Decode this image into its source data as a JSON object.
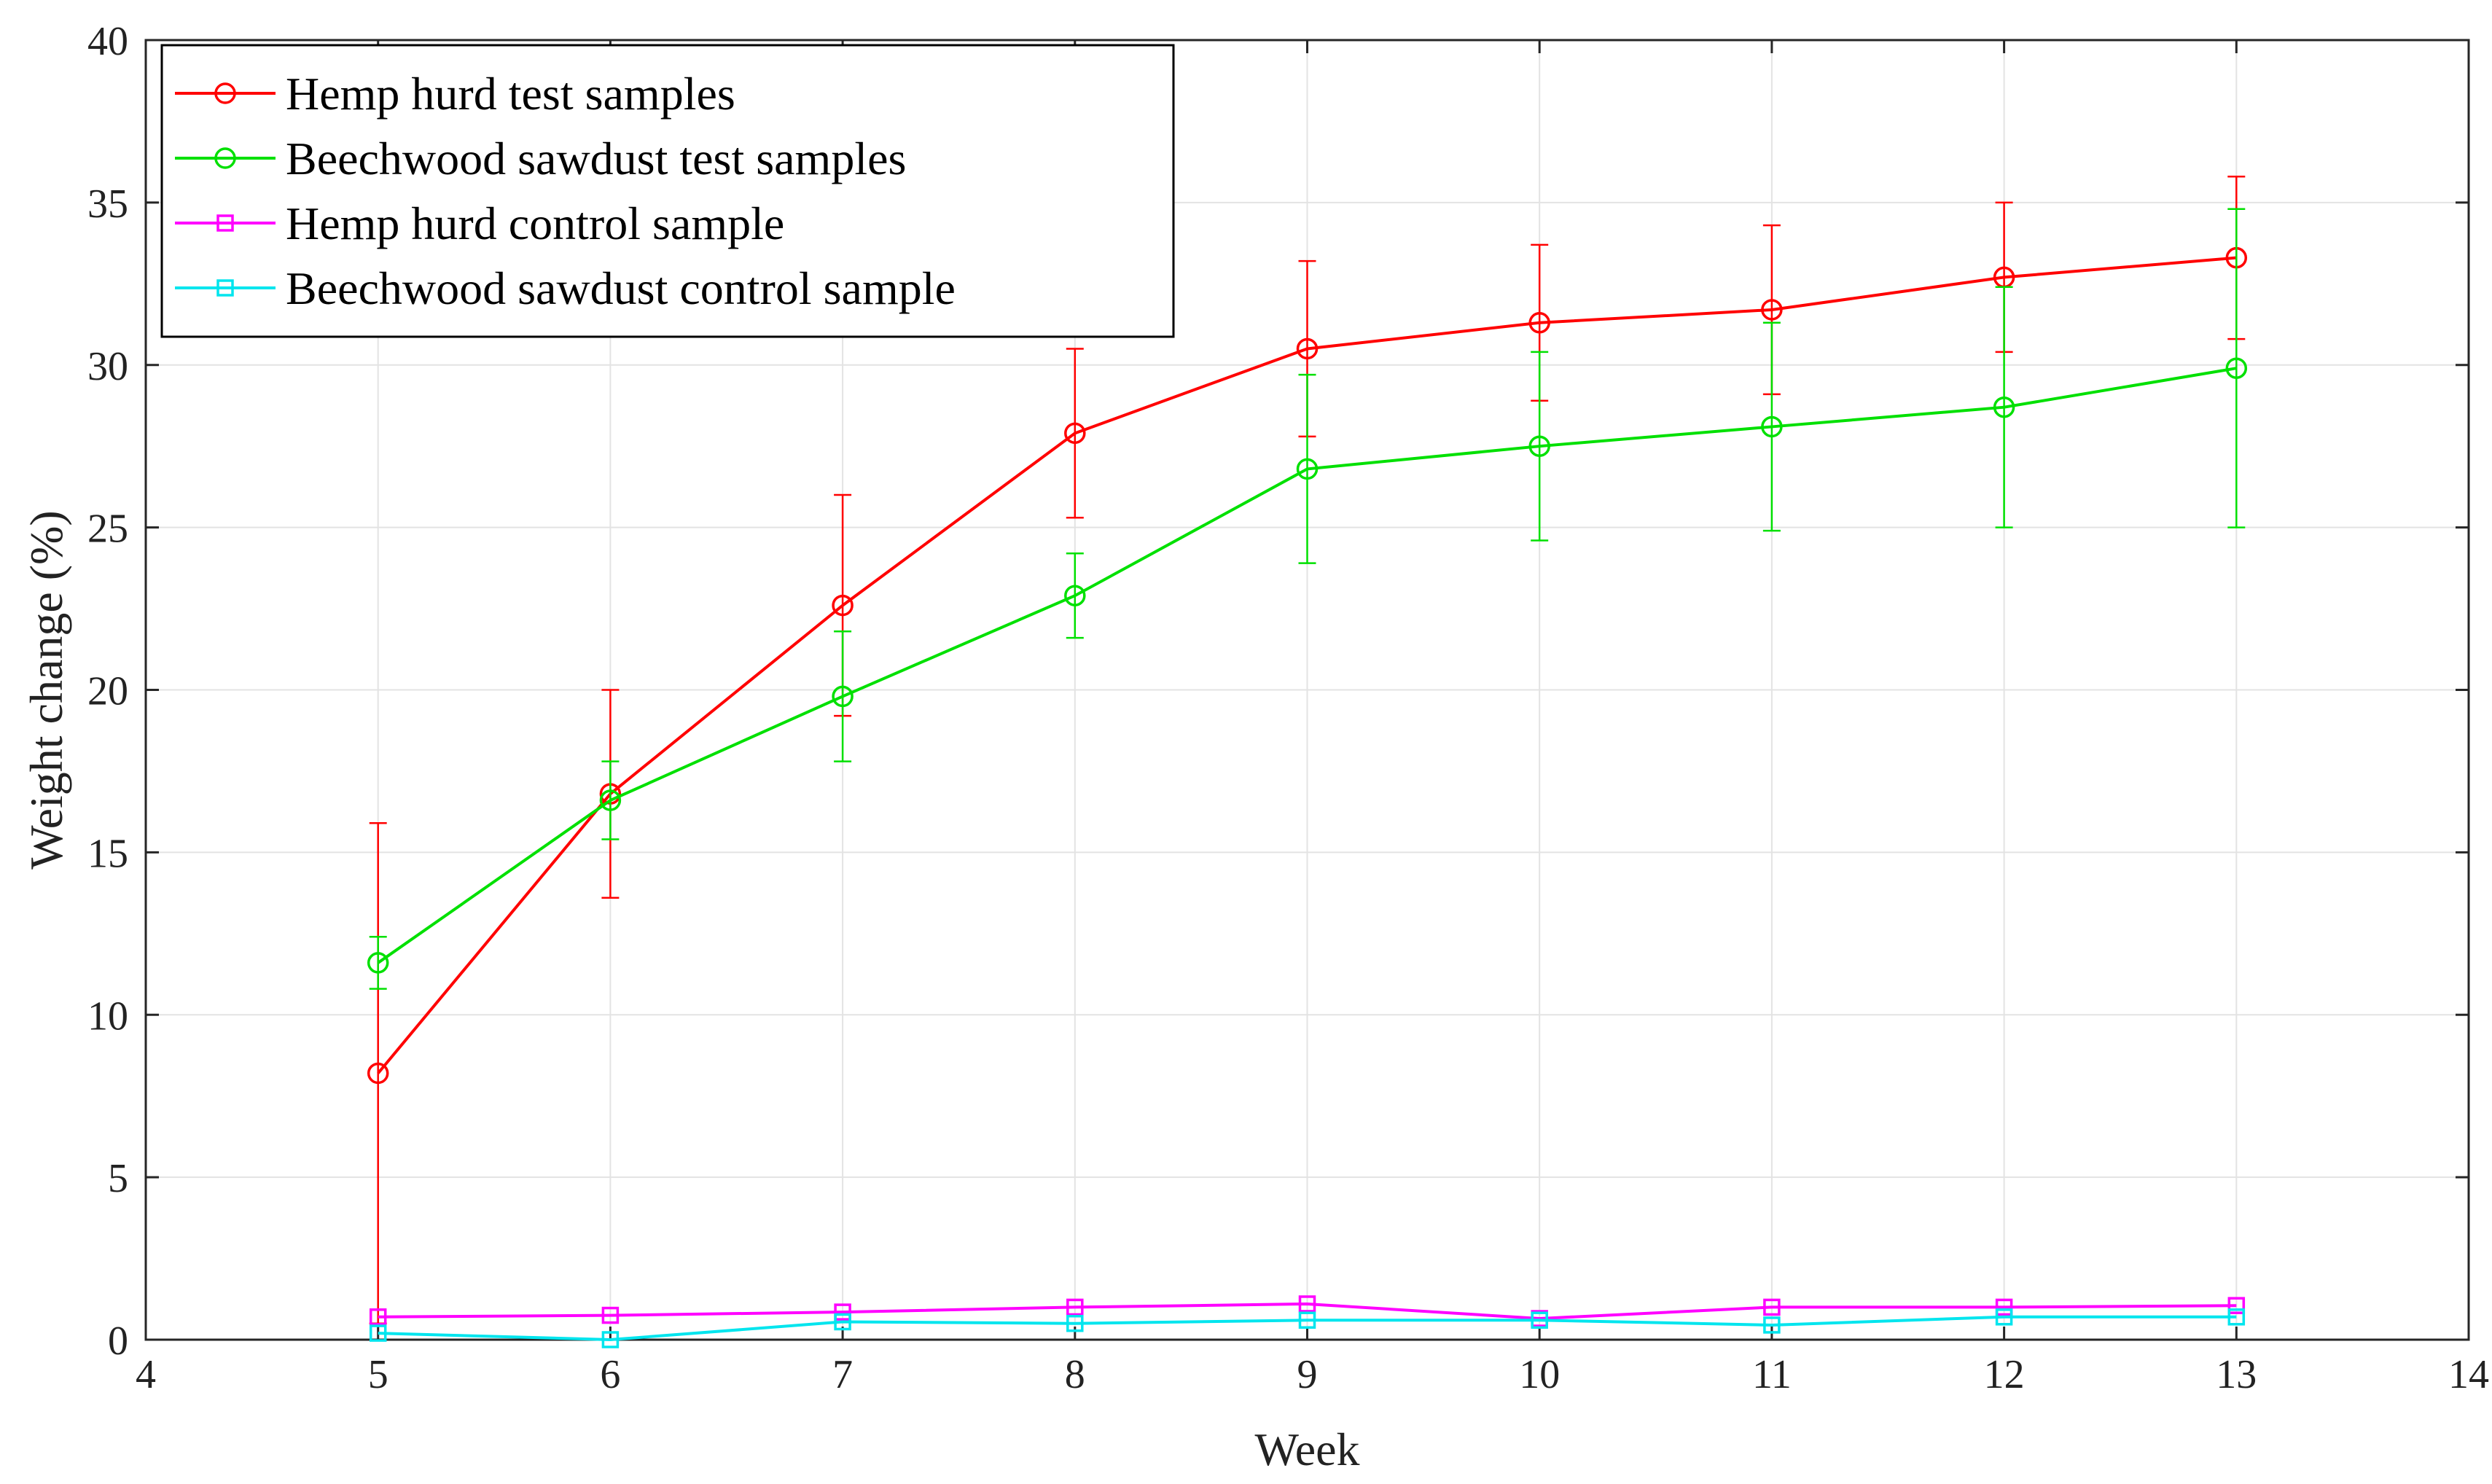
{
  "chart_data": {
    "type": "line",
    "title": "",
    "xlabel": "Week",
    "ylabel": "Weight change (%)",
    "xlim": [
      4,
      14
    ],
    "ylim": [
      0,
      40
    ],
    "xticks": [
      4,
      5,
      6,
      7,
      8,
      9,
      10,
      11,
      12,
      13,
      14
    ],
    "yticks": [
      0,
      5,
      10,
      15,
      20,
      25,
      30,
      35,
      40
    ],
    "grid": true,
    "legend_position": "top-left",
    "x": [
      5,
      6,
      7,
      8,
      9,
      10,
      11,
      12,
      13
    ],
    "series": [
      {
        "name": "Hemp hurd test samples",
        "color": "#ff0000",
        "marker": "circle",
        "values": [
          8.2,
          16.8,
          22.6,
          27.9,
          30.5,
          31.3,
          31.7,
          32.7,
          33.3
        ],
        "errors": [
          7.7,
          3.2,
          3.4,
          2.6,
          2.7,
          2.4,
          2.6,
          2.3,
          2.5
        ]
      },
      {
        "name": "Beechwood sawdust test samples",
        "color": "#00e000",
        "marker": "circle",
        "values": [
          11.6,
          16.6,
          19.8,
          22.9,
          26.8,
          27.5,
          28.1,
          28.7,
          29.9
        ],
        "errors": [
          0.8,
          1.2,
          2.0,
          1.3,
          2.9,
          2.9,
          3.2,
          3.7,
          4.9
        ]
      },
      {
        "name": "Hemp hurd control sample",
        "color": "#ff00ff",
        "marker": "square",
        "values": [
          0.7,
          0.75,
          0.85,
          1.0,
          1.1,
          0.65,
          1.0,
          1.0,
          1.05
        ],
        "errors": null
      },
      {
        "name": "Beechwood sawdust control sample",
        "color": "#00e5ee",
        "marker": "square",
        "values": [
          0.2,
          0.0,
          0.55,
          0.5,
          0.6,
          0.6,
          0.45,
          0.7,
          0.7
        ],
        "errors": null
      }
    ]
  }
}
